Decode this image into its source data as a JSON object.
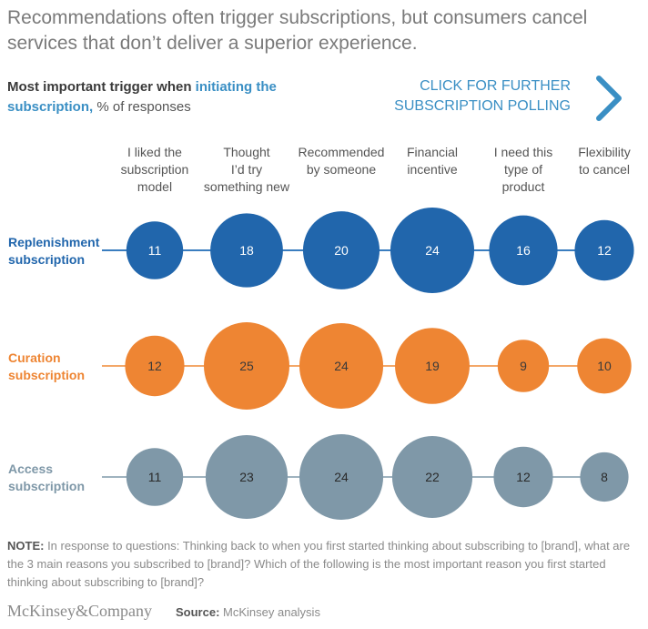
{
  "headline": "Recommendations often trigger subscriptions, but consumers cancel services that don’t deliver a superior experience.",
  "subtitle": {
    "bold_part": "Most important trigger when ",
    "highlight_part": "initiating the subscription,",
    "rest": " % of responses"
  },
  "cta": {
    "line1": "CLICK FOR FURTHER",
    "line2": "SUBSCRIPTION POLLING",
    "icon": "chevron-right-icon"
  },
  "note": {
    "label": "NOTE:",
    "text": " In response to questions: Thinking back to when you first started thinking about subscribing to [brand], what are the 3 main reasons you subscribed to [brand]? Which of the following is the most important reason you first started thinking about subscribing to [brand]?"
  },
  "footer": {
    "logo": "McKinsey&Company",
    "source_label": "Source:",
    "source_text": " McKinsey analysis"
  },
  "chart_data": {
    "type": "bubble-matrix",
    "title": "Most important trigger when initiating the subscription, % of responses",
    "columns": [
      [
        "I liked the",
        "subscription",
        "model"
      ],
      [
        "Thought",
        "I’d try",
        "something new"
      ],
      [
        "Recommended",
        "by someone"
      ],
      [
        "Financial",
        "incentive"
      ],
      [
        "I need this",
        "type of",
        "product"
      ],
      [
        "Flexibility",
        "to cancel"
      ]
    ],
    "series": [
      {
        "name": [
          "Replenishment",
          "subscription"
        ],
        "color": "#2166ac",
        "line_color": "#3a7dbf",
        "text_color": "#ffffff",
        "label_color": "#2166ac",
        "values": [
          11,
          18,
          20,
          24,
          16,
          12
        ]
      },
      {
        "name": [
          "Curation",
          "subscription"
        ],
        "color": "#ee8533",
        "line_color": "#f3a768",
        "text_color": "#3a3a3a",
        "label_color": "#ee8533",
        "values": [
          12,
          25,
          24,
          19,
          9,
          10
        ]
      },
      {
        "name": [
          "Access",
          "subscription"
        ],
        "color": "#7f98a8",
        "line_color": "#9fb3bf",
        "text_color": "#2a2a2a",
        "label_color": "#7f98a8",
        "values": [
          11,
          23,
          24,
          22,
          12,
          8
        ]
      }
    ],
    "unit": "%"
  }
}
